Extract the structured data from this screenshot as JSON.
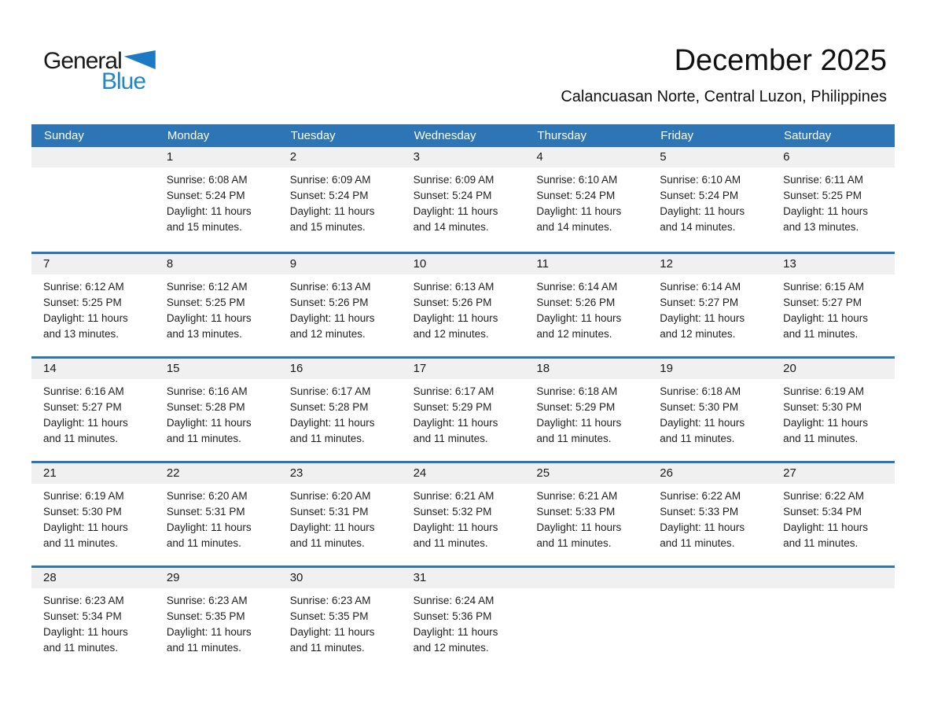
{
  "logo": {
    "general": "General",
    "blue": "Blue"
  },
  "header": {
    "title": "December 2025",
    "subtitle": "Calancuasan Norte, Central Luzon, Philippines"
  },
  "weekdays": [
    "Sunday",
    "Monday",
    "Tuesday",
    "Wednesday",
    "Thursday",
    "Friday",
    "Saturday"
  ],
  "colors": {
    "accent_blue": "#2e75b6",
    "logo_blue": "#2085c9",
    "band_gray": "#f0f0f0",
    "text": "#1f1f1f"
  },
  "weeks": [
    [
      null,
      {
        "n": "1",
        "sunrise": "Sunrise: 6:08 AM",
        "sunset": "Sunset: 5:24 PM",
        "daylight": "Daylight: 11 hours and 15 minutes."
      },
      {
        "n": "2",
        "sunrise": "Sunrise: 6:09 AM",
        "sunset": "Sunset: 5:24 PM",
        "daylight": "Daylight: 11 hours and 15 minutes."
      },
      {
        "n": "3",
        "sunrise": "Sunrise: 6:09 AM",
        "sunset": "Sunset: 5:24 PM",
        "daylight": "Daylight: 11 hours and 14 minutes."
      },
      {
        "n": "4",
        "sunrise": "Sunrise: 6:10 AM",
        "sunset": "Sunset: 5:24 PM",
        "daylight": "Daylight: 11 hours and 14 minutes."
      },
      {
        "n": "5",
        "sunrise": "Sunrise: 6:10 AM",
        "sunset": "Sunset: 5:24 PM",
        "daylight": "Daylight: 11 hours and 14 minutes."
      },
      {
        "n": "6",
        "sunrise": "Sunrise: 6:11 AM",
        "sunset": "Sunset: 5:25 PM",
        "daylight": "Daylight: 11 hours and 13 minutes."
      }
    ],
    [
      {
        "n": "7",
        "sunrise": "Sunrise: 6:12 AM",
        "sunset": "Sunset: 5:25 PM",
        "daylight": "Daylight: 11 hours and 13 minutes."
      },
      {
        "n": "8",
        "sunrise": "Sunrise: 6:12 AM",
        "sunset": "Sunset: 5:25 PM",
        "daylight": "Daylight: 11 hours and 13 minutes."
      },
      {
        "n": "9",
        "sunrise": "Sunrise: 6:13 AM",
        "sunset": "Sunset: 5:26 PM",
        "daylight": "Daylight: 11 hours and 12 minutes."
      },
      {
        "n": "10",
        "sunrise": "Sunrise: 6:13 AM",
        "sunset": "Sunset: 5:26 PM",
        "daylight": "Daylight: 11 hours and 12 minutes."
      },
      {
        "n": "11",
        "sunrise": "Sunrise: 6:14 AM",
        "sunset": "Sunset: 5:26 PM",
        "daylight": "Daylight: 11 hours and 12 minutes."
      },
      {
        "n": "12",
        "sunrise": "Sunrise: 6:14 AM",
        "sunset": "Sunset: 5:27 PM",
        "daylight": "Daylight: 11 hours and 12 minutes."
      },
      {
        "n": "13",
        "sunrise": "Sunrise: 6:15 AM",
        "sunset": "Sunset: 5:27 PM",
        "daylight": "Daylight: 11 hours and 11 minutes."
      }
    ],
    [
      {
        "n": "14",
        "sunrise": "Sunrise: 6:16 AM",
        "sunset": "Sunset: 5:27 PM",
        "daylight": "Daylight: 11 hours and 11 minutes."
      },
      {
        "n": "15",
        "sunrise": "Sunrise: 6:16 AM",
        "sunset": "Sunset: 5:28 PM",
        "daylight": "Daylight: 11 hours and 11 minutes."
      },
      {
        "n": "16",
        "sunrise": "Sunrise: 6:17 AM",
        "sunset": "Sunset: 5:28 PM",
        "daylight": "Daylight: 11 hours and 11 minutes."
      },
      {
        "n": "17",
        "sunrise": "Sunrise: 6:17 AM",
        "sunset": "Sunset: 5:29 PM",
        "daylight": "Daylight: 11 hours and 11 minutes."
      },
      {
        "n": "18",
        "sunrise": "Sunrise: 6:18 AM",
        "sunset": "Sunset: 5:29 PM",
        "daylight": "Daylight: 11 hours and 11 minutes."
      },
      {
        "n": "19",
        "sunrise": "Sunrise: 6:18 AM",
        "sunset": "Sunset: 5:30 PM",
        "daylight": "Daylight: 11 hours and 11 minutes."
      },
      {
        "n": "20",
        "sunrise": "Sunrise: 6:19 AM",
        "sunset": "Sunset: 5:30 PM",
        "daylight": "Daylight: 11 hours and 11 minutes."
      }
    ],
    [
      {
        "n": "21",
        "sunrise": "Sunrise: 6:19 AM",
        "sunset": "Sunset: 5:30 PM",
        "daylight": "Daylight: 11 hours and 11 minutes."
      },
      {
        "n": "22",
        "sunrise": "Sunrise: 6:20 AM",
        "sunset": "Sunset: 5:31 PM",
        "daylight": "Daylight: 11 hours and 11 minutes."
      },
      {
        "n": "23",
        "sunrise": "Sunrise: 6:20 AM",
        "sunset": "Sunset: 5:31 PM",
        "daylight": "Daylight: 11 hours and 11 minutes."
      },
      {
        "n": "24",
        "sunrise": "Sunrise: 6:21 AM",
        "sunset": "Sunset: 5:32 PM",
        "daylight": "Daylight: 11 hours and 11 minutes."
      },
      {
        "n": "25",
        "sunrise": "Sunrise: 6:21 AM",
        "sunset": "Sunset: 5:33 PM",
        "daylight": "Daylight: 11 hours and 11 minutes."
      },
      {
        "n": "26",
        "sunrise": "Sunrise: 6:22 AM",
        "sunset": "Sunset: 5:33 PM",
        "daylight": "Daylight: 11 hours and 11 minutes."
      },
      {
        "n": "27",
        "sunrise": "Sunrise: 6:22 AM",
        "sunset": "Sunset: 5:34 PM",
        "daylight": "Daylight: 11 hours and 11 minutes."
      }
    ],
    [
      {
        "n": "28",
        "sunrise": "Sunrise: 6:23 AM",
        "sunset": "Sunset: 5:34 PM",
        "daylight": "Daylight: 11 hours and 11 minutes."
      },
      {
        "n": "29",
        "sunrise": "Sunrise: 6:23 AM",
        "sunset": "Sunset: 5:35 PM",
        "daylight": "Daylight: 11 hours and 11 minutes."
      },
      {
        "n": "30",
        "sunrise": "Sunrise: 6:23 AM",
        "sunset": "Sunset: 5:35 PM",
        "daylight": "Daylight: 11 hours and 11 minutes."
      },
      {
        "n": "31",
        "sunrise": "Sunrise: 6:24 AM",
        "sunset": "Sunset: 5:36 PM",
        "daylight": "Daylight: 11 hours and 12 minutes."
      },
      null,
      null,
      null
    ]
  ]
}
